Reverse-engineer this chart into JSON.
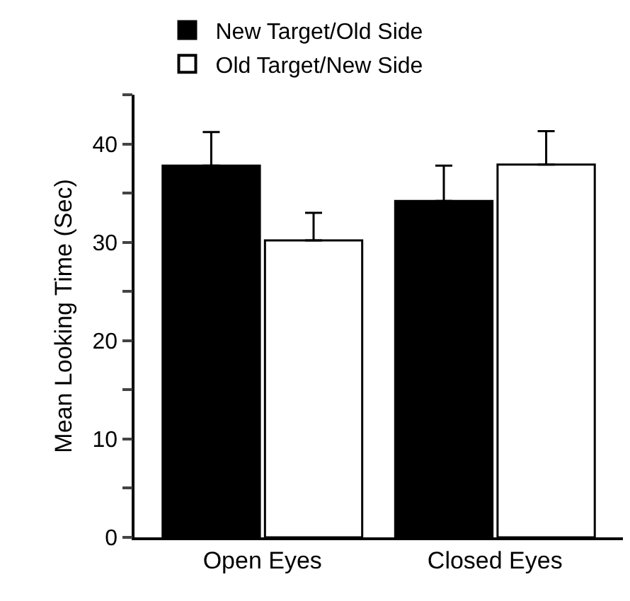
{
  "chart_data": {
    "type": "bar",
    "ylabel": "Mean Looking Time (Sec)",
    "categories": [
      "Open Eyes",
      "Closed Eyes"
    ],
    "series": [
      {
        "name": "New Target/Old Side",
        "color": "#000000",
        "values": [
          37.8,
          34.2
        ],
        "errors": [
          [
            37.8,
            41.2
          ],
          [
            34.2,
            37.8
          ]
        ]
      },
      {
        "name": "Old Target/New Side",
        "color": "#ffffff",
        "values": [
          30.2,
          37.9
        ],
        "errors": [
          [
            30.2,
            33.0
          ],
          [
            37.9,
            41.3
          ]
        ]
      }
    ],
    "ylim": [
      0,
      45
    ],
    "yticks": [
      0,
      {
        "value": 5,
        "label": null
      },
      10,
      {
        "value": 15,
        "label": null
      },
      20,
      {
        "value": 25,
        "label": null
      },
      30,
      {
        "value": 35,
        "label": null
      },
      40,
      {
        "value": 45,
        "label": null
      }
    ],
    "grid": false,
    "legend": "top"
  }
}
